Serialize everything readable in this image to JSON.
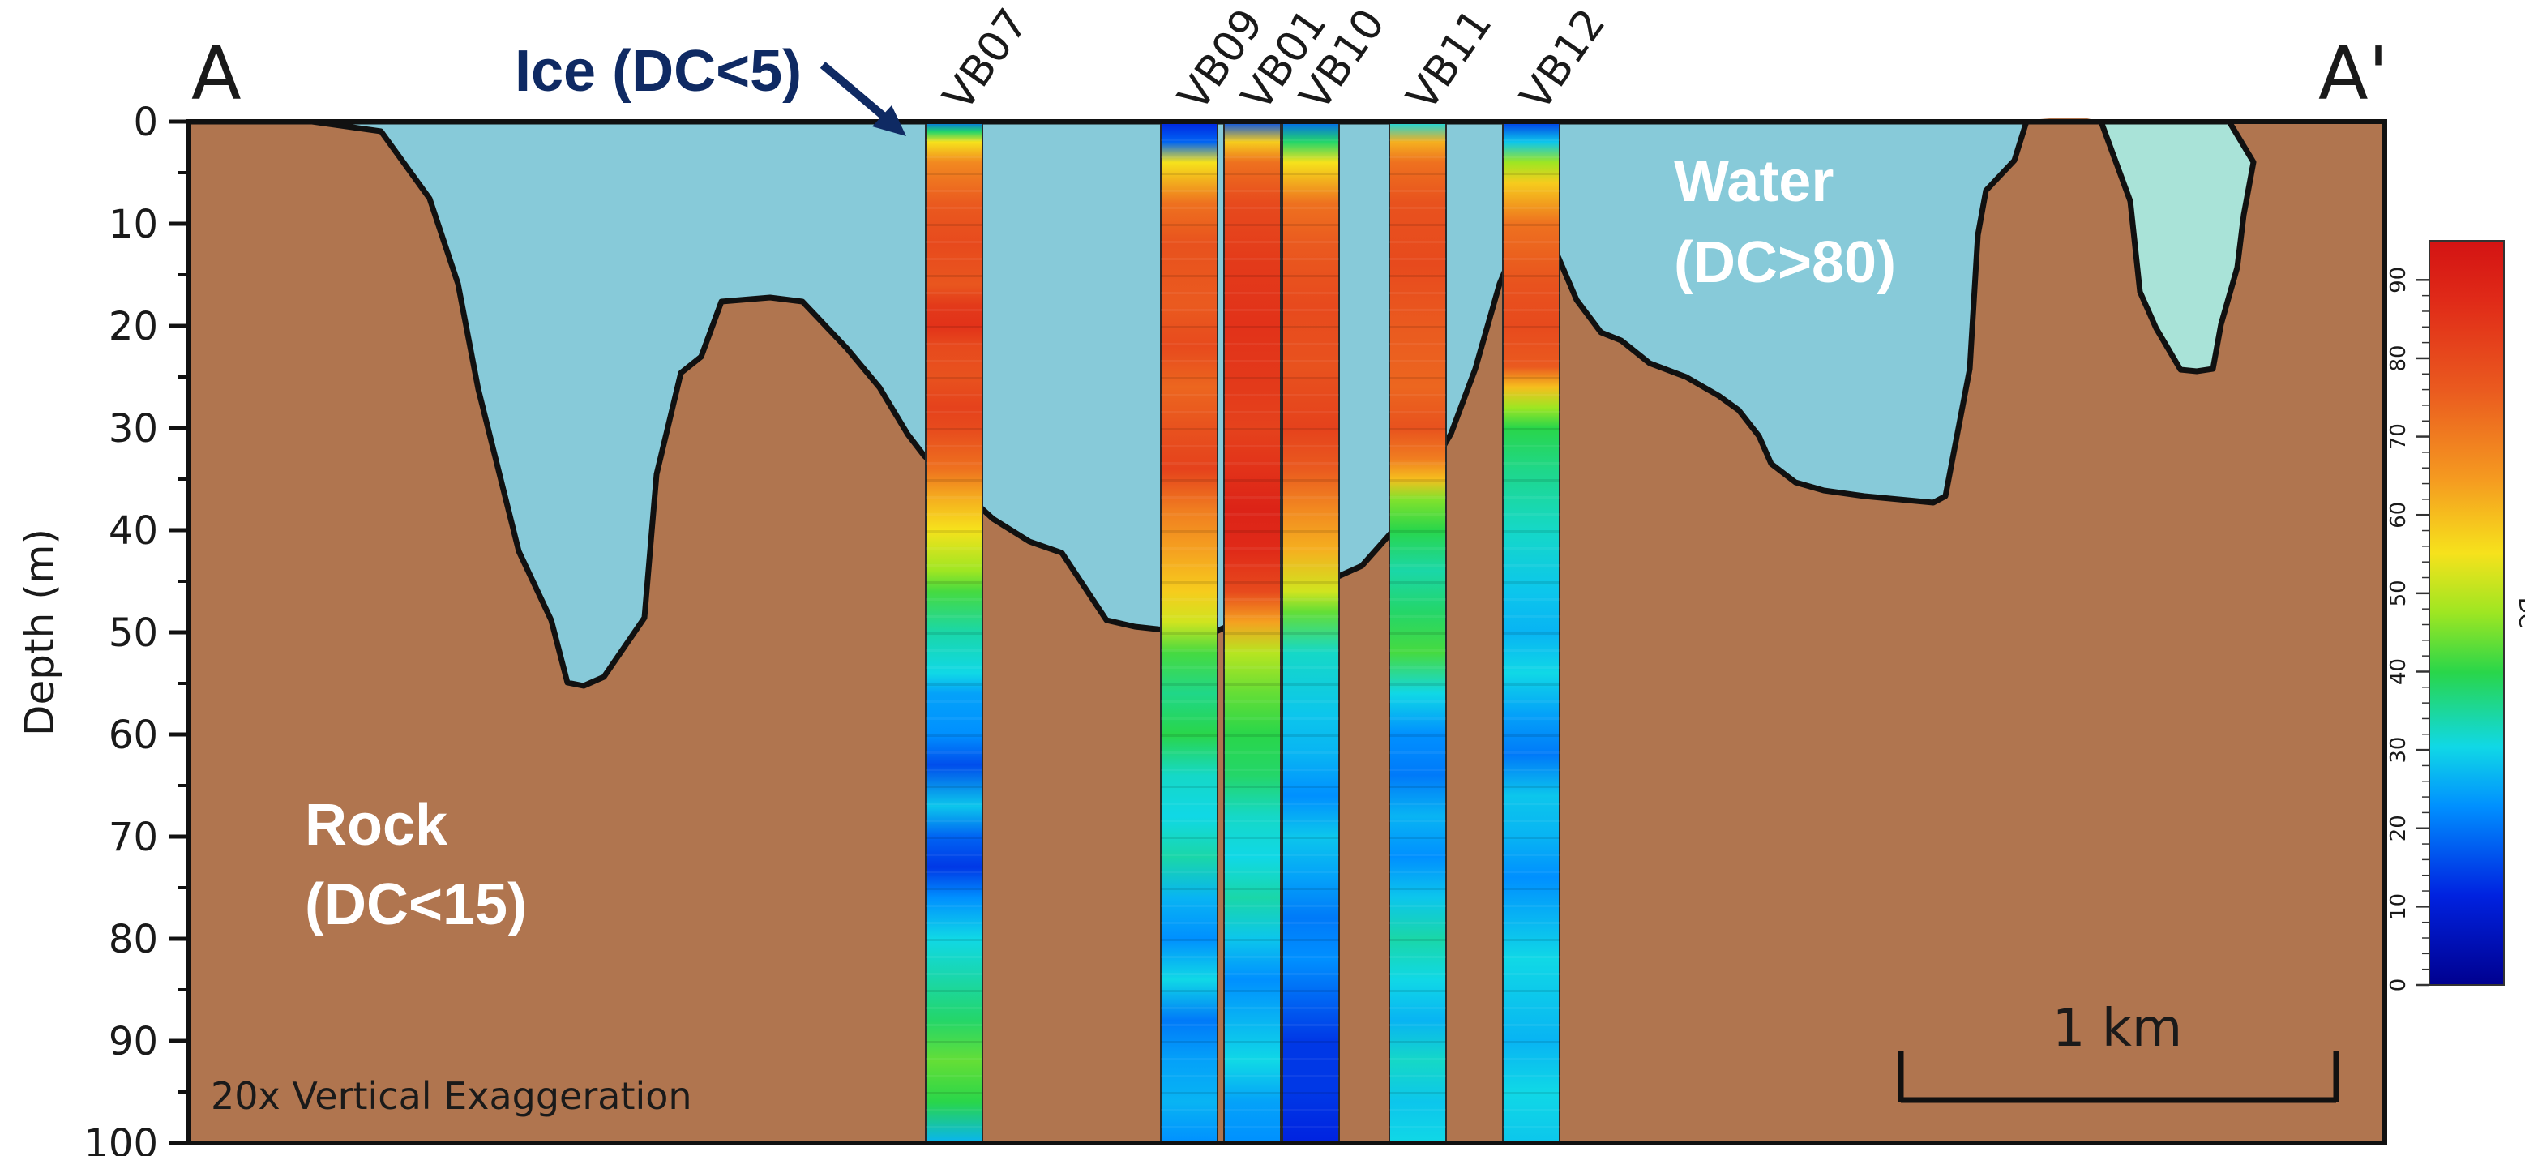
{
  "section": {
    "start_label": "A",
    "end_label": "A'",
    "y_axis_label": "Depth (m)",
    "y_ticks": [
      "0",
      "10",
      "20",
      "30",
      "40",
      "50",
      "60",
      "70",
      "80",
      "90",
      "100"
    ],
    "exaggeration_note": "20x Vertical Exaggeration",
    "scale_bar_label": "1 km"
  },
  "annotations": {
    "ice_label": "Ice (DC<5)",
    "water_label_line1": "Water",
    "water_label_line2": "(DC>80)",
    "rock_label_line1": "Rock",
    "rock_label_line2": "(DC<15)"
  },
  "colorbar": {
    "ticks": [
      "0",
      "10",
      "20",
      "30",
      "40",
      "50",
      "60",
      "70",
      "80",
      "90"
    ],
    "title": "DC",
    "min": 0,
    "max": 95
  },
  "colors": {
    "rock": "#b0754f",
    "water": "#87cad9",
    "pond": "#a9e3d8",
    "annotation_blue": "#0f2a63",
    "outline": "#111111"
  },
  "boreholes": [
    {
      "id": "VB07",
      "top_depth_m": 0,
      "bottom_depth_m": 100,
      "dc_profile": [
        [
          0,
          18
        ],
        [
          1,
          38
        ],
        [
          2,
          55
        ],
        [
          4,
          68
        ],
        [
          8,
          76
        ],
        [
          12,
          80
        ],
        [
          16,
          77
        ],
        [
          18,
          84
        ],
        [
          20,
          86
        ],
        [
          22,
          80
        ],
        [
          25,
          78
        ],
        [
          28,
          82
        ],
        [
          30,
          80
        ],
        [
          34,
          72
        ],
        [
          37,
          62
        ],
        [
          40,
          55
        ],
        [
          44,
          48
        ],
        [
          46,
          42
        ],
        [
          50,
          34
        ],
        [
          54,
          30
        ],
        [
          56,
          24
        ],
        [
          60,
          22
        ],
        [
          63,
          16
        ],
        [
          67,
          28
        ],
        [
          70,
          18
        ],
        [
          73,
          14
        ],
        [
          76,
          22
        ],
        [
          80,
          30
        ],
        [
          84,
          34
        ],
        [
          88,
          38
        ],
        [
          92,
          44
        ],
        [
          96,
          40
        ],
        [
          100,
          26
        ]
      ]
    },
    {
      "id": "VB09",
      "top_depth_m": 0,
      "bottom_depth_m": 100,
      "dc_profile": [
        [
          0,
          12
        ],
        [
          2,
          18
        ],
        [
          4,
          55
        ],
        [
          8,
          72
        ],
        [
          12,
          78
        ],
        [
          18,
          76
        ],
        [
          22,
          80
        ],
        [
          26,
          74
        ],
        [
          30,
          78
        ],
        [
          34,
          82
        ],
        [
          38,
          70
        ],
        [
          42,
          64
        ],
        [
          46,
          58
        ],
        [
          49,
          52
        ],
        [
          52,
          42
        ],
        [
          56,
          36
        ],
        [
          60,
          40
        ],
        [
          64,
          32
        ],
        [
          68,
          30
        ],
        [
          72,
          34
        ],
        [
          76,
          26
        ],
        [
          80,
          22
        ],
        [
          84,
          30
        ],
        [
          88,
          20
        ],
        [
          92,
          24
        ],
        [
          96,
          26
        ],
        [
          100,
          22
        ]
      ]
    },
    {
      "id": "VB01",
      "top_depth_m": 0,
      "bottom_depth_m": 100,
      "dc_profile": [
        [
          0,
          16
        ],
        [
          2,
          58
        ],
        [
          4,
          72
        ],
        [
          8,
          80
        ],
        [
          14,
          84
        ],
        [
          20,
          86
        ],
        [
          26,
          84
        ],
        [
          30,
          82
        ],
        [
          34,
          86
        ],
        [
          38,
          90
        ],
        [
          42,
          88
        ],
        [
          46,
          80
        ],
        [
          49,
          64
        ],
        [
          52,
          50
        ],
        [
          56,
          44
        ],
        [
          60,
          40
        ],
        [
          64,
          38
        ],
        [
          68,
          32
        ],
        [
          72,
          30
        ],
        [
          76,
          34
        ],
        [
          80,
          28
        ],
        [
          84,
          22
        ],
        [
          88,
          26
        ],
        [
          92,
          30
        ],
        [
          96,
          24
        ],
        [
          100,
          22
        ]
      ]
    },
    {
      "id": "VB10",
      "top_depth_m": 0,
      "bottom_depth_m": 100,
      "dc_profile": [
        [
          0,
          18
        ],
        [
          2,
          38
        ],
        [
          4,
          55
        ],
        [
          8,
          72
        ],
        [
          12,
          76
        ],
        [
          18,
          80
        ],
        [
          24,
          78
        ],
        [
          30,
          82
        ],
        [
          34,
          76
        ],
        [
          38,
          68
        ],
        [
          42,
          62
        ],
        [
          46,
          52
        ],
        [
          48,
          44
        ],
        [
          52,
          32
        ],
        [
          58,
          28
        ],
        [
          62,
          26
        ],
        [
          66,
          22
        ],
        [
          70,
          28
        ],
        [
          74,
          24
        ],
        [
          78,
          20
        ],
        [
          82,
          22
        ],
        [
          86,
          18
        ],
        [
          90,
          14
        ],
        [
          95,
          14
        ],
        [
          100,
          12
        ]
      ]
    },
    {
      "id": "VB11",
      "top_depth_m": 0,
      "bottom_depth_m": 100,
      "dc_profile": [
        [
          0,
          30
        ],
        [
          2,
          62
        ],
        [
          4,
          72
        ],
        [
          8,
          78
        ],
        [
          14,
          80
        ],
        [
          20,
          76
        ],
        [
          26,
          74
        ],
        [
          30,
          78
        ],
        [
          33,
          70
        ],
        [
          35,
          60
        ],
        [
          37,
          46
        ],
        [
          40,
          40
        ],
        [
          44,
          34
        ],
        [
          48,
          38
        ],
        [
          52,
          42
        ],
        [
          56,
          30
        ],
        [
          60,
          22
        ],
        [
          64,
          20
        ],
        [
          68,
          26
        ],
        [
          72,
          22
        ],
        [
          76,
          28
        ],
        [
          80,
          34
        ],
        [
          84,
          30
        ],
        [
          88,
          26
        ],
        [
          92,
          32
        ],
        [
          96,
          28
        ],
        [
          100,
          30
        ]
      ]
    },
    {
      "id": "VB12",
      "top_depth_m": 0,
      "bottom_depth_m": 100,
      "dc_profile": [
        [
          0,
          14
        ],
        [
          2,
          28
        ],
        [
          4,
          48
        ],
        [
          6,
          58
        ],
        [
          10,
          72
        ],
        [
          16,
          78
        ],
        [
          20,
          80
        ],
        [
          24,
          76
        ],
        [
          26,
          60
        ],
        [
          28,
          48
        ],
        [
          30,
          40
        ],
        [
          34,
          36
        ],
        [
          40,
          32
        ],
        [
          46,
          28
        ],
        [
          50,
          26
        ],
        [
          54,
          30
        ],
        [
          58,
          24
        ],
        [
          62,
          20
        ],
        [
          66,
          28
        ],
        [
          70,
          26
        ],
        [
          74,
          22
        ],
        [
          78,
          26
        ],
        [
          82,
          30
        ],
        [
          86,
          28
        ],
        [
          90,
          26
        ],
        [
          95,
          30
        ],
        [
          100,
          28
        ]
      ]
    }
  ]
}
